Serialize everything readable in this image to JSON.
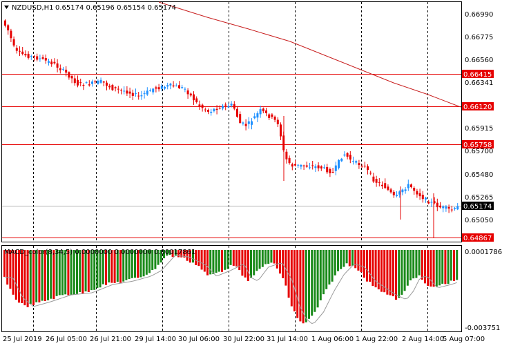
{
  "main_chart": {
    "symbol_label": "NZDUSD,H1",
    "ohlc_text": "0.65174 0.65196 0.65154 0.65174",
    "price_axis_labels": [
      "0.66990",
      "0.66775",
      "0.66560",
      "0.66341",
      "0.65915",
      "0.65700",
      "0.65480",
      "0.65265",
      "0.65050"
    ],
    "level_labels": [
      "0.66415",
      "0.66120",
      "0.65758",
      "0.64867"
    ],
    "current_price_label": "0.65174"
  },
  "indicator": {
    "title_text": "MACD_color(8,34,5) 0.0000000 0.0000000 0.00017861",
    "axis_top_label": "0.0001786",
    "axis_bottom_label": "-0.003751"
  },
  "time_axis_labels": [
    "25 Jul 2019",
    "26 Jul 05:00",
    "26 Jul 21:00",
    "29 Jul 14:00",
    "30 Jul 06:00",
    "30 Jul 22:00",
    "31 Jul 14:00",
    "1 Aug 06:00",
    "1 Aug 22:00",
    "2 Aug 14:00",
    "5 Aug 07:00"
  ],
  "colors": {
    "bull_candle": "#1e90ff",
    "bear_candle": "#e60000",
    "level_line": "#e60000",
    "ma_line": "#c81e1e",
    "macd_up": "#1a8a1a",
    "macd_down": "#e60000",
    "signal_line": "#9a9a9a",
    "current_price_line": "#b4b4b4",
    "level_label_bg": "#e60000",
    "current_label_bg": "#000000"
  }
}
